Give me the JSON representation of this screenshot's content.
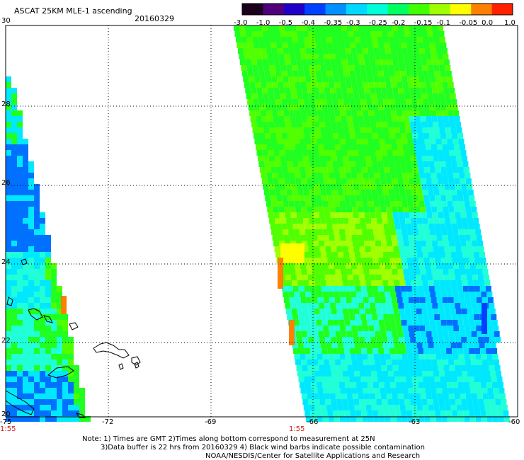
{
  "header": {
    "title": "ASCAT 25KM MLE-1 ascending",
    "date": "20160329"
  },
  "colorbar": {
    "labels": [
      "-3.0",
      "-1.0",
      "-0.5",
      "-0.4",
      "-0.35",
      "-0.3",
      "-0.25",
      "-0.2",
      "-0.15",
      "-0.1",
      "-0.05",
      "0.0",
      "1.0"
    ],
    "colors": [
      "#1a001a",
      "#50007a",
      "#2000c8",
      "#0040ff",
      "#0090ff",
      "#00d8ff",
      "#00ffd8",
      "#00ff60",
      "#40ff00",
      "#a0ff00",
      "#ffff00",
      "#ff8000",
      "#ff2000"
    ]
  },
  "map": {
    "lat_labels": [
      "30",
      "28",
      "26",
      "24",
      "22",
      "20"
    ],
    "lon_labels": [
      "-75",
      "-72",
      "-69",
      "-66",
      "-63",
      "-60"
    ],
    "time_labels": [
      "1:55",
      "1:55"
    ]
  },
  "notes": {
    "line1": "Note: 1) Times are GMT 2)Times along bottom correspond to measurement at 25N",
    "line2": "3)Data buffer is 22 hrs from 20160329 4) Black wind barbs indicate possible contamination",
    "line3": "NOAA/NESDIS/Center for Satellite Applications and Research"
  }
}
